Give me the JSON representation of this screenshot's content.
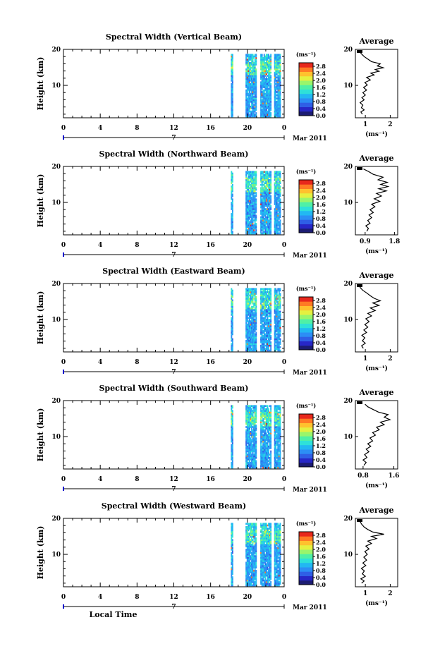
{
  "figure": {
    "xaxis_label": "Local Time",
    "date_label": "Mar 2011",
    "day_marker": "7",
    "ylabel": "Height (km)",
    "unit_label": "(ms⁻¹)",
    "average_title": "Average",
    "colors": {
      "colormap": [
        "#1c1c72",
        "#2727c7",
        "#2f5fe6",
        "#2c8ef5",
        "#22b8f2",
        "#2ee1d9",
        "#4ff0a6",
        "#9af56b",
        "#e5f040",
        "#ffc12e",
        "#ff7a24",
        "#e8281c"
      ],
      "frame": "#000000"
    }
  },
  "chart_data": [
    {
      "type": "heatmap",
      "title": "Spectral Width (Vertical Beam)",
      "xlabel": "",
      "ylabel": "Height (km)",
      "xlim": [
        0,
        24
      ],
      "ylim": [
        1,
        20
      ],
      "xticks": [
        "0",
        "4",
        "8",
        "12",
        "16",
        "20",
        "0"
      ],
      "yticks": [
        "10",
        "20"
      ],
      "colorbar": {
        "label": "(ms⁻¹)",
        "ticks": [
          "0.0",
          "0.4",
          "0.8",
          "1.2",
          "1.6",
          "2.0",
          "2.4",
          "2.8"
        ],
        "range": [
          0,
          3.0
        ]
      },
      "data_coverage_hours": [
        [
          18.2,
          18.4
        ],
        [
          19.8,
          21.0
        ],
        [
          21.4,
          22.5
        ],
        [
          22.9,
          23.6
        ]
      ],
      "average": {
        "title": "Average",
        "xlabel": "(ms⁻¹)",
        "xticks": [
          "1",
          "2"
        ],
        "xlim": [
          0.6,
          2.3
        ],
        "yticks": [
          "10",
          "20"
        ],
        "ylim": [
          1,
          20
        ],
        "profile": [
          [
            0.88,
            2.0
          ],
          [
            0.82,
            2.6
          ],
          [
            0.95,
            3.2
          ],
          [
            0.84,
            3.8
          ],
          [
            0.9,
            4.5
          ],
          [
            0.79,
            5.2
          ],
          [
            0.95,
            6.0
          ],
          [
            0.86,
            6.6
          ],
          [
            1.0,
            7.3
          ],
          [
            0.9,
            8.0
          ],
          [
            1.05,
            8.7
          ],
          [
            0.93,
            9.4
          ],
          [
            1.08,
            10.1
          ],
          [
            0.98,
            10.8
          ],
          [
            1.2,
            11.5
          ],
          [
            1.05,
            12.2
          ],
          [
            1.35,
            12.9
          ],
          [
            1.22,
            13.4
          ],
          [
            1.55,
            13.9
          ],
          [
            1.4,
            14.4
          ],
          [
            1.72,
            14.9
          ],
          [
            1.48,
            15.4
          ],
          [
            1.6,
            16.0
          ],
          [
            1.25,
            16.6
          ],
          [
            1.1,
            17.3
          ],
          [
            0.95,
            18.0
          ],
          [
            0.85,
            18.7
          ],
          [
            0.78,
            19.3
          ]
        ]
      }
    },
    {
      "type": "heatmap",
      "title": "Spectral Width (Northward Beam)",
      "xlabel": "",
      "ylabel": "Height (km)",
      "xlim": [
        0,
        24
      ],
      "ylim": [
        1,
        20
      ],
      "xticks": [
        "0",
        "4",
        "8",
        "12",
        "16",
        "20",
        "0"
      ],
      "yticks": [
        "10",
        "20"
      ],
      "colorbar": {
        "label": "(ms⁻¹)",
        "ticks": [
          "0.0",
          "0.4",
          "0.8",
          "1.2",
          "1.6",
          "2.0",
          "2.4",
          "2.8"
        ],
        "range": [
          0,
          3.0
        ]
      },
      "data_coverage_hours": [
        [
          18.2,
          18.4
        ],
        [
          19.8,
          21.0
        ],
        [
          21.4,
          22.5
        ],
        [
          22.9,
          23.6
        ]
      ],
      "average": {
        "title": "Average",
        "xlabel": "(ms⁻¹)",
        "xticks": [
          "0.9",
          "1.8"
        ],
        "xlim": [
          0.6,
          1.9
        ],
        "yticks": [
          "10",
          "20"
        ],
        "ylim": [
          1,
          20
        ],
        "profile": [
          [
            0.95,
            2.0
          ],
          [
            1.0,
            2.8
          ],
          [
            0.92,
            3.5
          ],
          [
            1.05,
            4.2
          ],
          [
            0.98,
            5.0
          ],
          [
            1.1,
            5.8
          ],
          [
            1.02,
            6.5
          ],
          [
            1.15,
            7.2
          ],
          [
            1.05,
            8.0
          ],
          [
            1.2,
            8.8
          ],
          [
            1.1,
            9.5
          ],
          [
            1.35,
            10.3
          ],
          [
            1.18,
            11.0
          ],
          [
            1.4,
            11.8
          ],
          [
            1.25,
            12.5
          ],
          [
            1.55,
            13.2
          ],
          [
            1.32,
            13.8
          ],
          [
            1.6,
            14.4
          ],
          [
            1.38,
            15.0
          ],
          [
            1.58,
            15.6
          ],
          [
            1.3,
            16.3
          ],
          [
            1.45,
            17.0
          ],
          [
            1.15,
            17.8
          ],
          [
            1.0,
            18.6
          ],
          [
            0.85,
            19.3
          ]
        ]
      }
    },
    {
      "type": "heatmap",
      "title": "Spectral Width (Eastward Beam)",
      "xlabel": "",
      "ylabel": "Height (km)",
      "xlim": [
        0,
        24
      ],
      "ylim": [
        1,
        20
      ],
      "xticks": [
        "0",
        "4",
        "8",
        "12",
        "16",
        "20",
        "0"
      ],
      "yticks": [
        "10",
        "20"
      ],
      "colorbar": {
        "label": "(ms⁻¹)",
        "ticks": [
          "0.0",
          "0.4",
          "0.8",
          "1.2",
          "1.6",
          "2.0",
          "2.4",
          "2.8"
        ],
        "range": [
          0,
          3.0
        ]
      },
      "data_coverage_hours": [
        [
          18.2,
          18.4
        ],
        [
          19.8,
          21.0
        ],
        [
          21.4,
          22.5
        ],
        [
          22.9,
          23.6
        ]
      ],
      "average": {
        "title": "Average",
        "xlabel": "(ms⁻¹)",
        "xticks": [
          "1",
          "2"
        ],
        "xlim": [
          0.6,
          2.3
        ],
        "yticks": [
          "10",
          "20"
        ],
        "ylim": [
          1,
          20
        ],
        "profile": [
          [
            0.92,
            2.0
          ],
          [
            0.85,
            2.7
          ],
          [
            1.0,
            3.4
          ],
          [
            0.88,
            4.1
          ],
          [
            0.98,
            4.9
          ],
          [
            0.86,
            5.6
          ],
          [
            1.05,
            6.4
          ],
          [
            0.94,
            7.1
          ],
          [
            1.1,
            7.9
          ],
          [
            0.98,
            8.6
          ],
          [
            1.15,
            9.4
          ],
          [
            1.02,
            10.2
          ],
          [
            1.25,
            11.0
          ],
          [
            1.1,
            11.7
          ],
          [
            1.4,
            12.5
          ],
          [
            1.2,
            13.2
          ],
          [
            1.55,
            13.9
          ],
          [
            1.3,
            14.6
          ],
          [
            1.6,
            15.2
          ],
          [
            1.35,
            15.9
          ],
          [
            1.2,
            16.6
          ],
          [
            1.05,
            17.4
          ],
          [
            0.9,
            18.1
          ],
          [
            0.8,
            18.8
          ],
          [
            0.75,
            19.4
          ]
        ]
      }
    },
    {
      "type": "heatmap",
      "title": "Spectral Width (Southward Beam)",
      "xlabel": "",
      "ylabel": "Height (km)",
      "xlim": [
        0,
        24
      ],
      "ylim": [
        1,
        20
      ],
      "xticks": [
        "0",
        "4",
        "8",
        "12",
        "16",
        "20",
        "0"
      ],
      "yticks": [
        "10",
        "20"
      ],
      "colorbar": {
        "label": "(ms⁻¹)",
        "ticks": [
          "0.0",
          "0.4",
          "0.8",
          "1.2",
          "1.6",
          "2.0",
          "2.4",
          "2.8"
        ],
        "range": [
          0,
          3.0
        ]
      },
      "data_coverage_hours": [
        [
          18.2,
          18.4
        ],
        [
          19.8,
          21.0
        ],
        [
          21.4,
          22.5
        ],
        [
          22.9,
          23.6
        ]
      ],
      "average": {
        "title": "Average",
        "xlabel": "(ms⁻¹)",
        "xticks": [
          "0.8",
          "1.6"
        ],
        "xlim": [
          0.6,
          1.7
        ],
        "yticks": [
          "10",
          "20"
        ],
        "ylim": [
          1,
          20
        ],
        "profile": [
          [
            0.82,
            2.0
          ],
          [
            0.88,
            2.8
          ],
          [
            0.8,
            3.5
          ],
          [
            0.9,
            4.2
          ],
          [
            0.84,
            5.0
          ],
          [
            0.95,
            5.8
          ],
          [
            0.88,
            6.5
          ],
          [
            1.0,
            7.3
          ],
          [
            0.92,
            8.0
          ],
          [
            1.05,
            8.8
          ],
          [
            0.98,
            9.6
          ],
          [
            1.12,
            10.4
          ],
          [
            1.05,
            11.1
          ],
          [
            1.22,
            11.9
          ],
          [
            1.15,
            12.6
          ],
          [
            1.35,
            13.3
          ],
          [
            1.25,
            14.0
          ],
          [
            1.5,
            14.7
          ],
          [
            1.35,
            15.4
          ],
          [
            1.45,
            16.1
          ],
          [
            1.2,
            16.8
          ],
          [
            1.05,
            17.6
          ],
          [
            0.92,
            18.3
          ],
          [
            0.85,
            19.0
          ]
        ]
      }
    },
    {
      "type": "heatmap",
      "title": "Spectral Width (Westward Beam)",
      "xlabel": "Local Time",
      "ylabel": "Height (km)",
      "xlim": [
        0,
        24
      ],
      "ylim": [
        1,
        20
      ],
      "xticks": [
        "0",
        "4",
        "8",
        "12",
        "16",
        "20",
        "0"
      ],
      "yticks": [
        "10",
        "20"
      ],
      "colorbar": {
        "label": "(ms⁻¹)",
        "ticks": [
          "0.0",
          "0.4",
          "0.8",
          "1.2",
          "1.6",
          "2.0",
          "2.4",
          "2.8"
        ],
        "range": [
          0,
          3.0
        ]
      },
      "data_coverage_hours": [
        [
          18.2,
          18.4
        ],
        [
          19.8,
          21.0
        ],
        [
          21.4,
          22.5
        ],
        [
          22.9,
          23.6
        ]
      ],
      "average": {
        "title": "Average",
        "xlabel": "(ms⁻¹)",
        "xticks": [
          "1",
          "2"
        ],
        "xlim": [
          0.6,
          2.3
        ],
        "yticks": [
          "10",
          "20"
        ],
        "ylim": [
          1,
          20
        ],
        "profile": [
          [
            0.85,
            2.0
          ],
          [
            0.95,
            2.6
          ],
          [
            0.82,
            3.2
          ],
          [
            1.0,
            3.9
          ],
          [
            0.88,
            4.6
          ],
          [
            0.96,
            5.4
          ],
          [
            0.84,
            6.1
          ],
          [
            1.02,
            6.9
          ],
          [
            0.9,
            7.6
          ],
          [
            1.05,
            8.4
          ],
          [
            0.94,
            9.2
          ],
          [
            1.08,
            10.0
          ],
          [
            0.98,
            10.8
          ],
          [
            1.15,
            11.5
          ],
          [
            1.02,
            12.3
          ],
          [
            1.25,
            13.0
          ],
          [
            1.1,
            13.7
          ],
          [
            1.45,
            14.4
          ],
          [
            1.25,
            15.0
          ],
          [
            1.75,
            15.6
          ],
          [
            1.3,
            16.2
          ],
          [
            1.1,
            16.9
          ],
          [
            0.95,
            17.6
          ],
          [
            0.85,
            18.4
          ],
          [
            0.78,
            19.2
          ]
        ]
      }
    }
  ]
}
